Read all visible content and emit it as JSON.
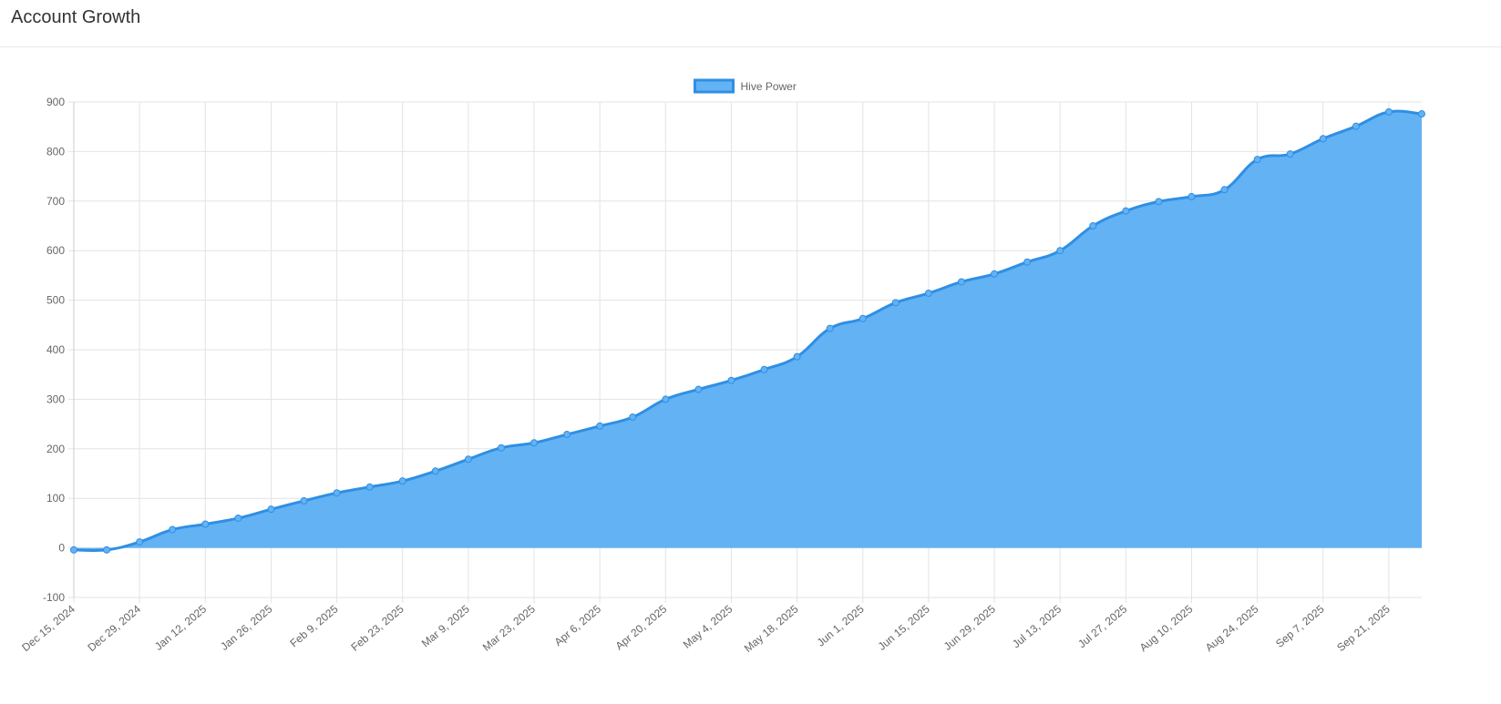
{
  "chart_data": {
    "type": "area",
    "title": "Account Growth",
    "categories": [
      "Dec 15, 2024",
      null,
      "Dec 29, 2024",
      null,
      "Jan 12, 2025",
      null,
      "Jan 26, 2025",
      null,
      "Feb 9, 2025",
      null,
      "Feb 23, 2025",
      null,
      "Mar 9, 2025",
      null,
      "Mar 23, 2025",
      null,
      "Apr 6, 2025",
      null,
      "Apr 20, 2025",
      null,
      "May 4, 2025",
      null,
      "May 18, 2025",
      null,
      "Jun 1, 2025",
      null,
      "Jun 15, 2025",
      null,
      "Jun 29, 2025",
      null,
      "Jul 13, 2025",
      null,
      "Jul 27, 2025",
      null,
      "Aug 10, 2025",
      null,
      "Aug 24, 2025",
      null,
      "Sep 7, 2025",
      null,
      "Sep 21, 2025",
      null
    ],
    "series": [
      {
        "name": "Hive Power",
        "color": "#2f8fe3",
        "fill": "#63b2f4",
        "values": [
          -4,
          -4,
          12,
          37,
          48,
          60,
          78,
          95,
          111,
          123,
          135,
          155,
          179,
          202,
          212,
          229,
          246,
          264,
          300,
          320,
          338,
          360,
          386,
          443,
          463,
          495,
          514,
          537,
          553,
          577,
          600,
          650,
          680,
          699,
          709,
          723,
          784,
          795,
          826,
          851,
          880,
          876
        ]
      }
    ],
    "ylim": [
      -100,
      900
    ],
    "yticks": [
      -100,
      0,
      100,
      200,
      300,
      400,
      500,
      600,
      700,
      800,
      900
    ],
    "grid": true,
    "legend": "top"
  }
}
